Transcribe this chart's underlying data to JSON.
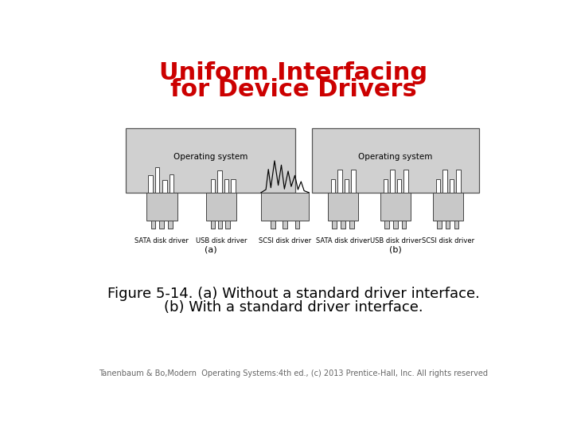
{
  "title_line1": "Uniform Interfacing",
  "title_line2": "for Device Drivers",
  "title_color": "#cc0000",
  "title_fontsize": 22,
  "caption_line1": "Figure 5-14. (a) Without a standard driver interface.",
  "caption_line2": "(b) With a standard driver interface.",
  "caption_fontsize": 13,
  "footer": "Tanenbaum & Bo,Modern  Operating Systems:4th ed., (c) 2013 Prentice-Hall, Inc. All rights reserved",
  "footer_fontsize": 7,
  "bg_color": "#ffffff",
  "gray_os": "#d0d0d0",
  "gray_drv": "#c8c8c8",
  "ec_color": "#444444",
  "white": "#ffffff"
}
